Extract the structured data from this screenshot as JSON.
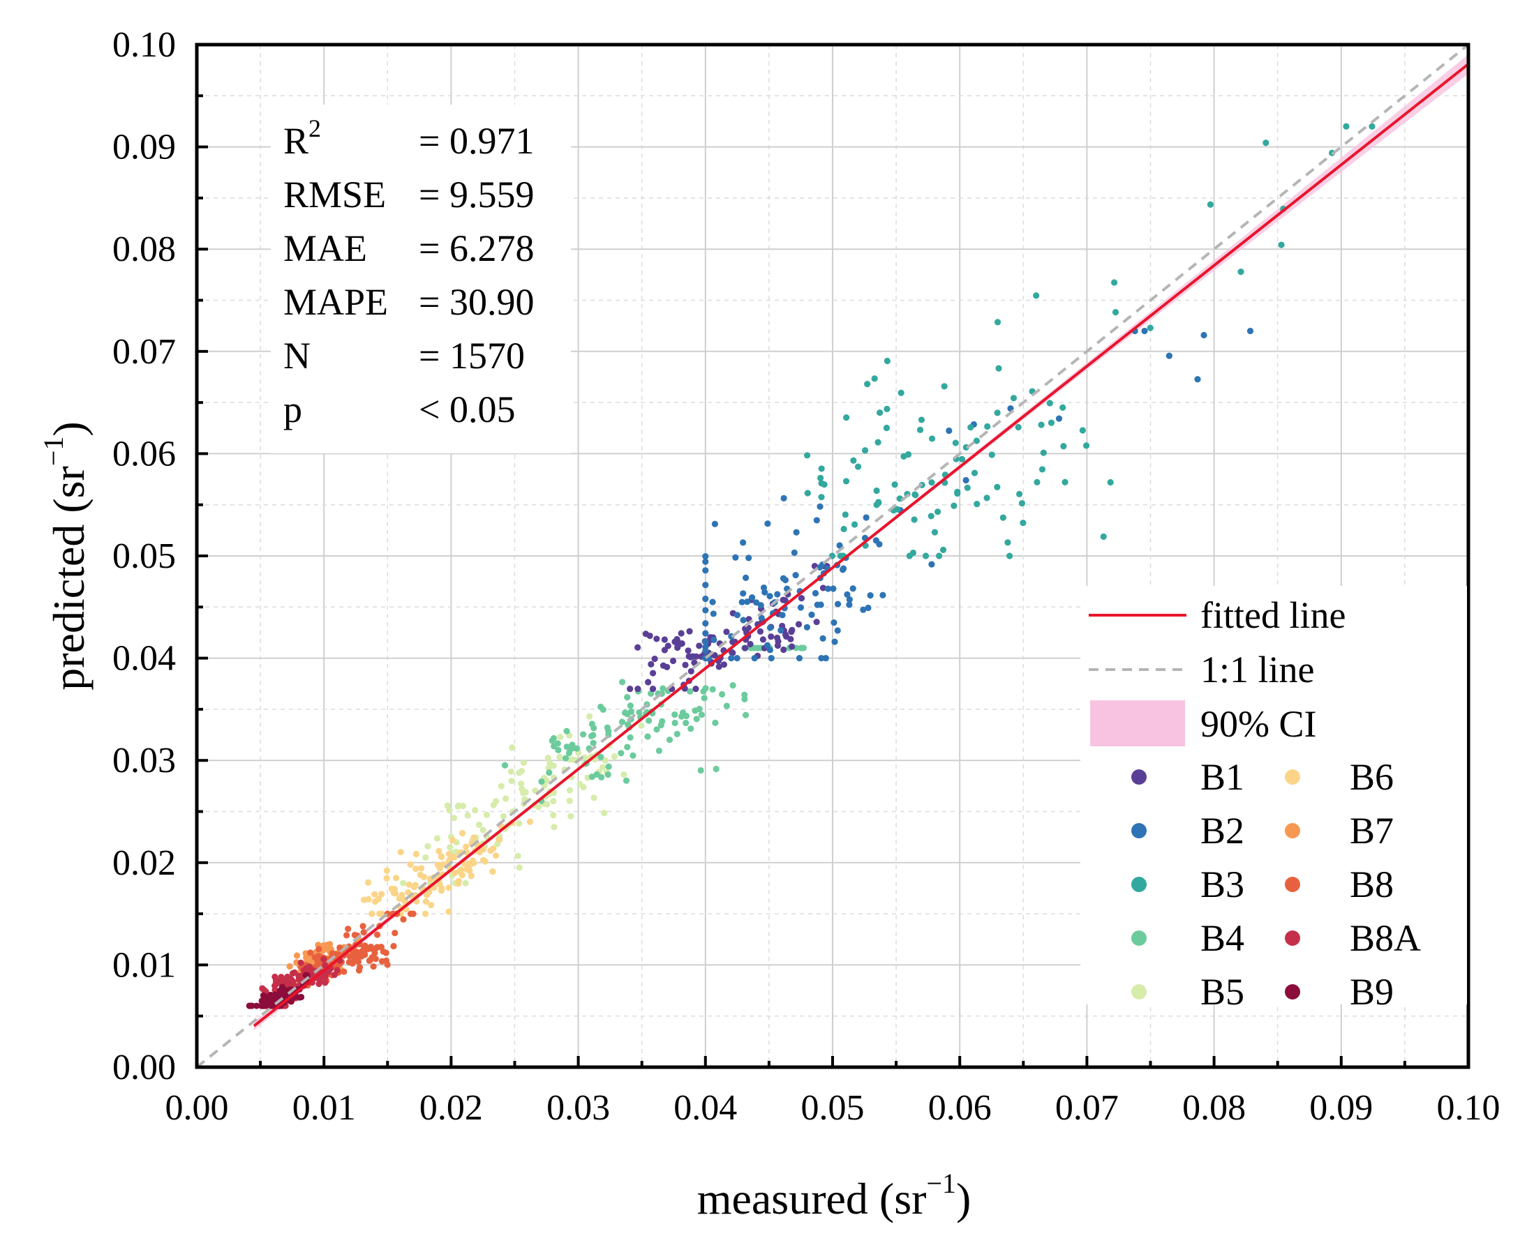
{
  "chart_data": {
    "type": "scatter",
    "xlabel": {
      "main": "measured (sr",
      "sup": "−1",
      "close": ")"
    },
    "ylabel": {
      "main": "predicted (sr",
      "sup": "−1",
      "close": ")"
    },
    "xlim": [
      0,
      0.1
    ],
    "ylim": [
      0,
      0.1
    ],
    "x_ticks": [
      "0.00",
      "0.01",
      "0.02",
      "0.03",
      "0.04",
      "0.05",
      "0.06",
      "0.07",
      "0.08",
      "0.09",
      "0.10"
    ],
    "y_ticks": [
      "0.00",
      "0.01",
      "0.02",
      "0.03",
      "0.04",
      "0.05",
      "0.06",
      "0.07",
      "0.08",
      "0.09",
      "0.10"
    ],
    "grid": true,
    "stats": [
      {
        "label": "R",
        "sup": "2",
        "value": "= 0.971"
      },
      {
        "label": "RMSE",
        "sup": "",
        "value": "= 9.559"
      },
      {
        "label": "MAE",
        "sup": "",
        "value": "= 6.278"
      },
      {
        "label": "MAPE",
        "sup": "",
        "value": "= 30.90"
      },
      {
        "label": "N",
        "sup": "",
        "value": "= 1570"
      },
      {
        "label": "p",
        "sup": "",
        "value": "< 0.05"
      }
    ],
    "fitted_line": {
      "label": "fitted line",
      "slope": 0.985,
      "intercept": -0.0004,
      "color": "#e8152b"
    },
    "one_to_one_line": {
      "label": "1:1 line",
      "color": "#b5b5b5"
    },
    "confidence_band": {
      "label": "90% CI",
      "color": "#f8c3e0"
    },
    "legend_position": "bottom-right",
    "series": [
      {
        "name": "B1",
        "color": "#5a3f96",
        "x_range": [
          0.034,
          0.05
        ],
        "y_range": [
          0.037,
          0.049
        ],
        "centers": [
          [
            0.038,
            0.041
          ],
          [
            0.04,
            0.04
          ],
          [
            0.045,
            0.043
          ]
        ]
      },
      {
        "name": "B2",
        "color": "#2e74b5",
        "x_range": [
          0.04,
          0.083
        ],
        "y_range": [
          0.04,
          0.072
        ],
        "centers": [
          [
            0.043,
            0.043
          ],
          [
            0.046,
            0.046
          ],
          [
            0.049,
            0.048
          ]
        ]
      },
      {
        "name": "B3",
        "color": "#33a89e",
        "x_range": [
          0.048,
          0.094
        ],
        "y_range": [
          0.05,
          0.092
        ],
        "centers": [
          [
            0.055,
            0.057
          ],
          [
            0.06,
            0.058
          ],
          [
            0.062,
            0.061
          ]
        ]
      },
      {
        "name": "B4",
        "color": "#6ccb9d",
        "x_range": [
          0.022,
          0.048
        ],
        "y_range": [
          0.026,
          0.041
        ],
        "centers": [
          [
            0.03,
            0.031
          ],
          [
            0.035,
            0.033
          ],
          [
            0.038,
            0.035
          ]
        ]
      },
      {
        "name": "B5",
        "color": "#d6ecab",
        "x_range": [
          0.016,
          0.035
        ],
        "y_range": [
          0.018,
          0.035
        ],
        "centers": [
          [
            0.022,
            0.023
          ],
          [
            0.026,
            0.027
          ],
          [
            0.03,
            0.029
          ]
        ]
      },
      {
        "name": "B6",
        "color": "#fad589",
        "x_range": [
          0.013,
          0.027
        ],
        "y_range": [
          0.015,
          0.024
        ],
        "centers": [
          [
            0.016,
            0.017
          ],
          [
            0.019,
            0.019
          ],
          [
            0.022,
            0.021
          ]
        ]
      },
      {
        "name": "B7",
        "color": "#f79852",
        "x_range": [
          0.007,
          0.013
        ],
        "y_range": [
          0.008,
          0.014
        ],
        "centers": [
          [
            0.009,
            0.01
          ],
          [
            0.01,
            0.011
          ]
        ]
      },
      {
        "name": "B8",
        "color": "#e8613e",
        "x_range": [
          0.008,
          0.018
        ],
        "y_range": [
          0.008,
          0.015
        ],
        "centers": [
          [
            0.01,
            0.01
          ],
          [
            0.013,
            0.011
          ]
        ]
      },
      {
        "name": "B8A",
        "color": "#c62f4a",
        "x_range": [
          0.005,
          0.012
        ],
        "y_range": [
          0.006,
          0.011
        ],
        "centers": [
          [
            0.007,
            0.008
          ],
          [
            0.009,
            0.009
          ]
        ]
      },
      {
        "name": "B9",
        "color": "#8c0d3b",
        "x_range": [
          0.004,
          0.009
        ],
        "y_range": [
          0.006,
          0.009
        ],
        "centers": [
          [
            0.006,
            0.0065
          ],
          [
            0.007,
            0.007
          ]
        ]
      }
    ]
  }
}
